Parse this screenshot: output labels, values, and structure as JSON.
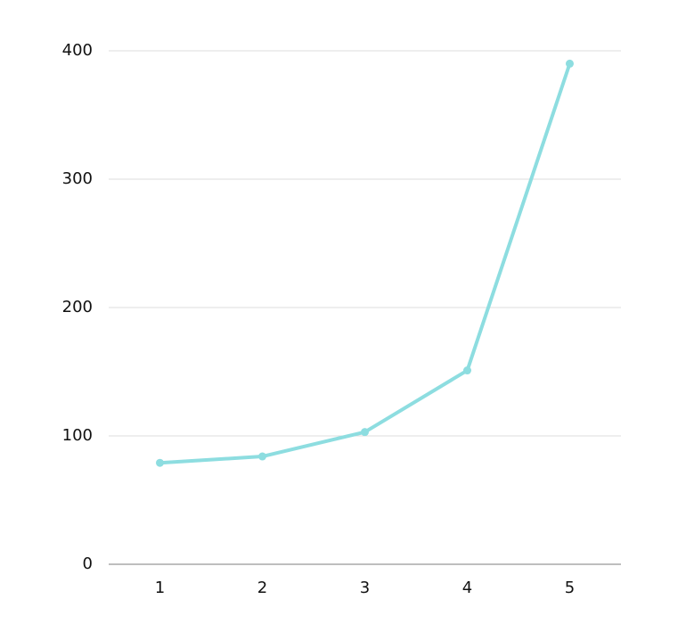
{
  "chart_data": {
    "type": "line",
    "categories": [
      "1",
      "2",
      "3",
      "4",
      "5"
    ],
    "values": [
      79,
      84,
      103,
      151,
      390
    ],
    "color": "#8ddde0",
    "ylim": [
      0,
      400
    ],
    "yticks": [
      0,
      100,
      200,
      300,
      400
    ],
    "grid": true
  }
}
